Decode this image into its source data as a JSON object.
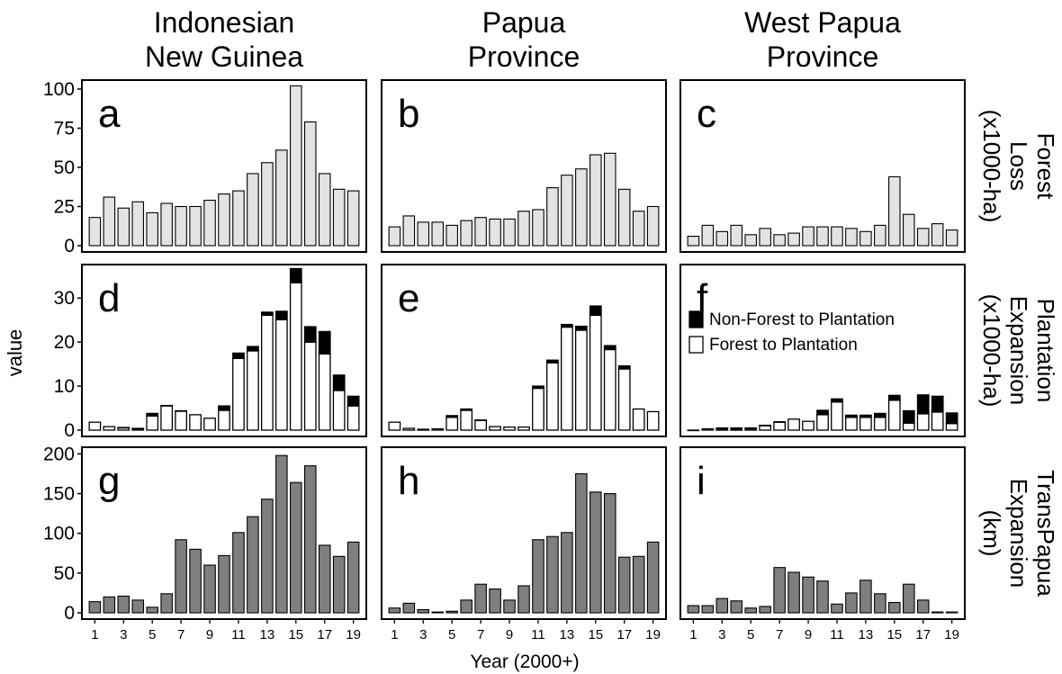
{
  "figure": {
    "col_titles": [
      [
        "Indonesian",
        "New Guinea"
      ],
      [
        "Papua",
        "Province"
      ],
      [
        "West Papua",
        "Province"
      ]
    ],
    "row_labels": [
      [
        "Forest",
        "Loss",
        "(x1000-ha)"
      ],
      [
        "Plantation",
        "Expansion",
        "(x1000-ha)"
      ],
      [
        "TransPapua",
        "Expansion",
        "(km)"
      ]
    ],
    "y_axis_label": "value",
    "x_axis_label": "Year (2000+)",
    "panel_letters": [
      "a",
      "b",
      "c",
      "d",
      "e",
      "f",
      "g",
      "h",
      "i"
    ],
    "x_ticks": [
      "1",
      "3",
      "5",
      "7",
      "9",
      "11",
      "13",
      "15",
      "17",
      "19"
    ],
    "y_ticks": [
      [
        "0",
        "25",
        "50",
        "75",
        "100"
      ],
      [
        "0",
        "10",
        "20",
        "30"
      ],
      [
        "0",
        "50",
        "100",
        "150",
        "200"
      ]
    ],
    "legend": {
      "items": [
        "Non-Forest to Plantation",
        "Forest to Plantation"
      ],
      "colors": [
        "#000000",
        "#ffffff"
      ]
    },
    "colors": {
      "forest_loss": "#e3e3e3",
      "transpapua": "#7f7f7f",
      "forest_to_plantation": "#ffffff",
      "nonforest_to_plantation": "#000000"
    }
  },
  "chart_data": [
    {
      "panel": "a",
      "type": "bar",
      "region": "Indonesian New Guinea",
      "metric": "Forest Loss (x1000-ha)",
      "x": [
        1,
        2,
        3,
        4,
        5,
        6,
        7,
        8,
        9,
        10,
        11,
        12,
        13,
        14,
        15,
        16,
        17,
        18,
        19
      ],
      "values": [
        18,
        31,
        24,
        28,
        21,
        27,
        25,
        25,
        29,
        33,
        35,
        46,
        53,
        61,
        102,
        79,
        46,
        36,
        35
      ],
      "ylim": [
        0,
        104
      ]
    },
    {
      "panel": "b",
      "type": "bar",
      "region": "Papua Province",
      "metric": "Forest Loss (x1000-ha)",
      "x": [
        1,
        2,
        3,
        4,
        5,
        6,
        7,
        8,
        9,
        10,
        11,
        12,
        13,
        14,
        15,
        16,
        17,
        18,
        19
      ],
      "values": [
        12,
        19,
        15,
        15,
        13,
        16,
        18,
        17,
        17,
        22,
        23,
        37,
        45,
        49,
        58,
        59,
        36,
        22,
        25
      ],
      "ylim": [
        0,
        104
      ]
    },
    {
      "panel": "c",
      "type": "bar",
      "region": "West Papua Province",
      "metric": "Forest Loss (x1000-ha)",
      "x": [
        1,
        2,
        3,
        4,
        5,
        6,
        7,
        8,
        9,
        10,
        11,
        12,
        13,
        14,
        15,
        16,
        17,
        18,
        19
      ],
      "values": [
        6,
        13,
        9,
        13,
        7,
        11,
        7,
        8,
        12,
        12,
        12,
        11,
        9,
        13,
        44,
        20,
        11,
        14,
        10
      ],
      "ylim": [
        0,
        104
      ]
    },
    {
      "panel": "d",
      "type": "bar",
      "stacked": true,
      "region": "Indonesian New Guinea",
      "metric": "Plantation Expansion (x1000-ha)",
      "x": [
        1,
        2,
        3,
        4,
        5,
        6,
        7,
        8,
        9,
        10,
        11,
        12,
        13,
        14,
        15,
        16,
        17,
        18,
        19
      ],
      "series": [
        {
          "name": "Forest to Plantation",
          "values": [
            1.8,
            0.8,
            0.5,
            0.3,
            3.2,
            5.5,
            4.3,
            3.5,
            2.7,
            4.5,
            16.3,
            18,
            26.1,
            25.1,
            33.5,
            20,
            17.3,
            9,
            5.5
          ]
        },
        {
          "name": "Non-Forest to Plantation",
          "values": [
            0,
            0,
            0.1,
            0.1,
            0.6,
            0.1,
            0.1,
            0,
            0,
            1,
            1.2,
            1,
            0.7,
            1.9,
            3.2,
            3.5,
            5.1,
            3.5,
            2.2
          ]
        }
      ],
      "ylim": [
        0,
        37
      ]
    },
    {
      "panel": "e",
      "type": "bar",
      "stacked": true,
      "region": "Papua Province",
      "metric": "Plantation Expansion (x1000-ha)",
      "x": [
        1,
        2,
        3,
        4,
        5,
        6,
        7,
        8,
        9,
        10,
        11,
        12,
        13,
        14,
        15,
        16,
        17,
        18,
        19
      ],
      "series": [
        {
          "name": "Forest to Plantation",
          "values": [
            1.8,
            0.4,
            0.2,
            0.3,
            2.9,
            4.5,
            2.2,
            0.8,
            0.7,
            0.7,
            9.5,
            15.3,
            23.4,
            22.7,
            26.1,
            18.3,
            13.9,
            4.8,
            4.2
          ]
        },
        {
          "name": "Non-Forest to Plantation",
          "values": [
            0,
            0,
            0,
            0,
            0.4,
            0.3,
            0.1,
            0,
            0,
            0,
            0.5,
            0.6,
            0.6,
            0.9,
            2.1,
            0.9,
            0.7,
            0,
            0
          ]
        }
      ],
      "ylim": [
        0,
        37
      ]
    },
    {
      "panel": "f",
      "type": "bar",
      "stacked": true,
      "region": "West Papua Province",
      "metric": "Plantation Expansion (x1000-ha)",
      "x": [
        1,
        2,
        3,
        4,
        5,
        6,
        7,
        8,
        9,
        10,
        11,
        12,
        13,
        14,
        15,
        16,
        17,
        18,
        19
      ],
      "series": [
        {
          "name": "Forest to Plantation",
          "values": [
            0,
            0.3,
            0.2,
            0.1,
            0.3,
            1,
            1.8,
            2.5,
            2,
            3.5,
            6.4,
            2.9,
            2.9,
            2.9,
            6.8,
            1.6,
            3.7,
            4.1,
            1.5
          ]
        },
        {
          "name": "Non-Forest to Plantation",
          "values": [
            0,
            0,
            0.3,
            0.4,
            0.2,
            0.1,
            0.1,
            0,
            0,
            1,
            0.7,
            0.5,
            0.5,
            0.9,
            1.1,
            2.8,
            4.3,
            3.6,
            2.4
          ]
        }
      ],
      "ylim": [
        0,
        37
      ]
    },
    {
      "panel": "g",
      "type": "bar",
      "region": "Indonesian New Guinea",
      "metric": "TransPapua Expansion (km)",
      "x": [
        1,
        2,
        3,
        4,
        5,
        6,
        7,
        8,
        9,
        10,
        11,
        12,
        13,
        14,
        15,
        16,
        17,
        18,
        19
      ],
      "values": [
        14,
        20,
        21,
        16,
        7,
        24,
        92,
        80,
        60,
        72,
        101,
        121,
        143,
        198,
        164,
        185,
        85,
        71,
        89
      ],
      "ylim": [
        0,
        205
      ]
    },
    {
      "panel": "h",
      "type": "bar",
      "region": "Papua Province",
      "metric": "TransPapua Expansion (km)",
      "x": [
        1,
        2,
        3,
        4,
        5,
        6,
        7,
        8,
        9,
        10,
        11,
        12,
        13,
        14,
        15,
        16,
        17,
        18,
        19
      ],
      "values": [
        6,
        12,
        4,
        1,
        2,
        16,
        36,
        30,
        16,
        34,
        92,
        96,
        101,
        175,
        152,
        150,
        70,
        71,
        89
      ],
      "ylim": [
        0,
        205
      ]
    },
    {
      "panel": "i",
      "type": "bar",
      "region": "West Papua Province",
      "metric": "TransPapua Expansion (km)",
      "x": [
        1,
        2,
        3,
        4,
        5,
        6,
        7,
        8,
        9,
        10,
        11,
        12,
        13,
        14,
        15,
        16,
        17,
        18,
        19
      ],
      "values": [
        9,
        9,
        18,
        15,
        6,
        8,
        57,
        51,
        45,
        40,
        11,
        25,
        41,
        24,
        13,
        36,
        16,
        1,
        1
      ],
      "ylim": [
        0,
        205
      ]
    }
  ]
}
